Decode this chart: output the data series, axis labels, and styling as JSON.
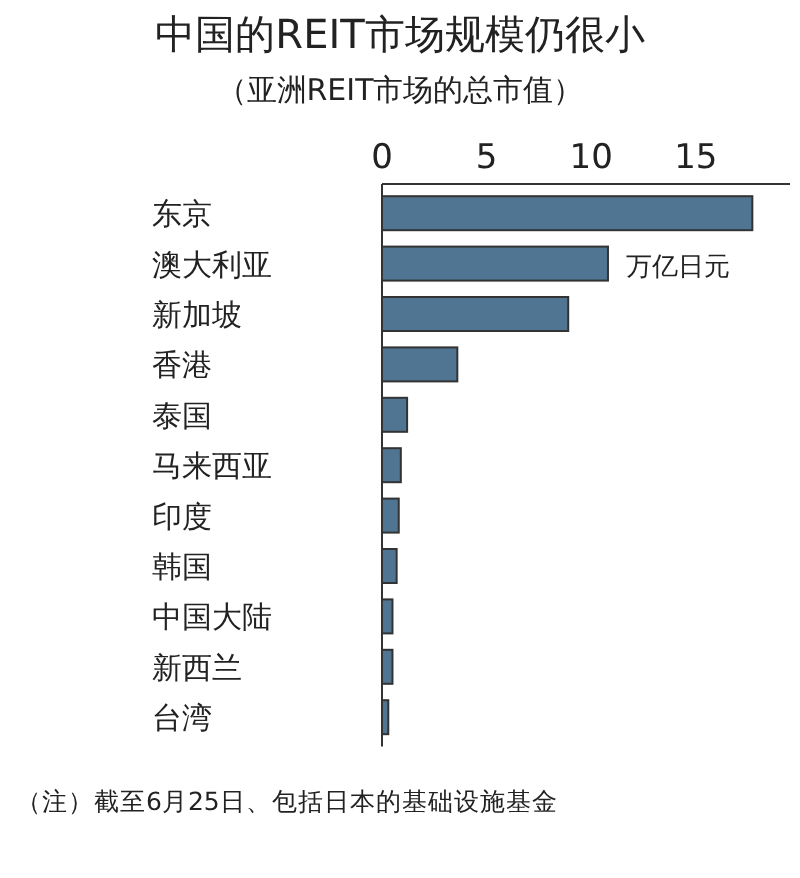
{
  "chart_data": {
    "type": "bar",
    "orientation": "horizontal",
    "title": "中国的REIT市场规模仍很小",
    "subtitle": "（亚洲REIT市场的总市值）",
    "categories": [
      "东京",
      "澳大利亚",
      "新加坡",
      "香港",
      "泰国",
      "马来西亚",
      "印度",
      "韩国",
      "中国大陆",
      "新西兰",
      "台湾"
    ],
    "values": [
      17.7,
      10.8,
      8.9,
      3.6,
      1.2,
      0.9,
      0.8,
      0.7,
      0.5,
      0.5,
      0.3
    ],
    "color": "#4f7592",
    "xlim": [
      0,
      19.5
    ],
    "xticks": [
      0,
      5,
      10,
      15
    ],
    "annotations": [
      "万亿日元",
      "（注）截至6月25日、包括日本的基础设施基金"
    ]
  }
}
